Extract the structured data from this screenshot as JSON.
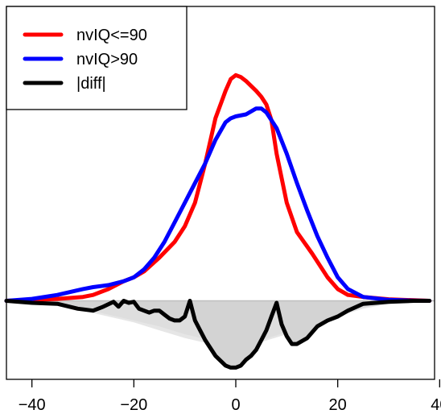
{
  "chart_data": {
    "type": "line",
    "title": "",
    "xlabel": "",
    "ylabel": "",
    "xlim": [
      -45,
      39
    ],
    "ylim": [
      -0.04,
      0.15
    ],
    "x_ticks": [
      -40,
      -20,
      0,
      20,
      40
    ],
    "x_tick_labels": [
      "−40",
      "−20",
      "0",
      "20",
      "40"
    ],
    "grid": false,
    "legend": {
      "position": "top-left",
      "entries": [
        {
          "label": "nvIQ<=90",
          "color": "#ff0000"
        },
        {
          "label": "nvIQ>90",
          "color": "#0000ff"
        },
        {
          "label": "|diff|",
          "color": "#000000"
        }
      ]
    },
    "series": [
      {
        "name": "nvIQ<=90",
        "color": "#ff0000",
        "x": [
          -45,
          -40,
          -35,
          -30,
          -28,
          -25,
          -22,
          -20,
          -18,
          -15,
          -12,
          -10,
          -8,
          -6,
          -4,
          -2,
          -1,
          0,
          1,
          2,
          4,
          5,
          6,
          7,
          8,
          10,
          12,
          15,
          18,
          20,
          22,
          25,
          30,
          35,
          38
        ],
        "y": [
          0,
          0.0005,
          0.001,
          0.002,
          0.003,
          0.006,
          0.01,
          0.012,
          0.015,
          0.022,
          0.03,
          0.038,
          0.05,
          0.07,
          0.093,
          0.107,
          0.113,
          0.115,
          0.114,
          0.112,
          0.107,
          0.104,
          0.1,
          0.092,
          0.075,
          0.05,
          0.035,
          0.024,
          0.012,
          0.006,
          0.003,
          0.002,
          0.0008,
          0.0003,
          0
        ]
      },
      {
        "name": "nvIQ>90",
        "color": "#0000ff",
        "x": [
          -45,
          -40,
          -35,
          -30,
          -28,
          -25,
          -22,
          -20,
          -18,
          -16,
          -14,
          -12,
          -10,
          -8,
          -6,
          -4,
          -2,
          -1,
          0,
          2,
          4,
          5,
          6,
          8,
          10,
          12,
          14,
          16,
          18,
          20,
          22,
          25,
          30,
          35,
          38
        ],
        "y": [
          0,
          0.001,
          0.003,
          0.006,
          0.007,
          0.008,
          0.01,
          0.012,
          0.016,
          0.022,
          0.03,
          0.04,
          0.05,
          0.06,
          0.07,
          0.082,
          0.091,
          0.093,
          0.094,
          0.095,
          0.098,
          0.098,
          0.096,
          0.088,
          0.075,
          0.06,
          0.046,
          0.033,
          0.022,
          0.012,
          0.006,
          0.002,
          0.0005,
          0.0001,
          0
        ]
      },
      {
        "name": "|diff|",
        "color": "#000000",
        "x": [
          -45,
          -40,
          -35,
          -31,
          -28,
          -26,
          -24,
          -23,
          -22,
          -21,
          -20,
          -19,
          -18,
          -17,
          -16,
          -15,
          -14,
          -13,
          -12,
          -11,
          -10,
          -9,
          -8,
          -6,
          -4,
          -2,
          -1,
          0,
          1,
          2,
          3,
          4,
          5,
          6,
          7,
          8,
          9,
          10,
          11,
          12,
          14,
          16,
          18,
          20,
          22,
          25,
          30,
          35,
          38
        ],
        "y": [
          0,
          -0.001,
          -0.0015,
          -0.004,
          -0.005,
          -0.003,
          -0.0005,
          -0.003,
          0,
          -0.001,
          -0.0005,
          -0.004,
          -0.005,
          -0.006,
          -0.005,
          -0.005,
          -0.007,
          -0.009,
          -0.01,
          -0.01,
          -0.008,
          0,
          -0.01,
          -0.02,
          -0.028,
          -0.033,
          -0.034,
          -0.034,
          -0.033,
          -0.03,
          -0.028,
          -0.025,
          -0.02,
          -0.015,
          -0.008,
          -0.001,
          -0.012,
          -0.018,
          -0.022,
          -0.022,
          -0.019,
          -0.013,
          -0.01,
          -0.008,
          -0.005,
          -0.0015,
          -0.0005,
          0,
          0
        ]
      },
      {
        "name": "",
        "color": "#d3d3d3",
        "x": [
          -45,
          -40,
          -35,
          -31,
          -28,
          -26,
          -24,
          -23,
          -22,
          -21,
          -20,
          -19,
          -18,
          -17,
          -16,
          -15,
          -14,
          -13,
          -12,
          -11,
          -10,
          -9,
          -8,
          -6,
          -4,
          -2,
          -1,
          0,
          1,
          2,
          3,
          4,
          5,
          6,
          7,
          8,
          9,
          10,
          11,
          12,
          14,
          16,
          18,
          20,
          22,
          25,
          30,
          35,
          38
        ],
        "y": [
          0,
          -0.001,
          -0.0015,
          -0.004,
          -0.005,
          -0.003,
          -0.0005,
          -0.003,
          0,
          -0.001,
          -0.0005,
          -0.004,
          -0.005,
          -0.006,
          -0.005,
          -0.005,
          -0.007,
          -0.009,
          -0.01,
          -0.01,
          -0.008,
          0,
          -0.01,
          -0.02,
          -0.028,
          -0.033,
          -0.034,
          -0.034,
          -0.033,
          -0.03,
          -0.028,
          -0.025,
          -0.02,
          -0.015,
          -0.008,
          -0.001,
          -0.012,
          -0.018,
          -0.022,
          -0.022,
          -0.019,
          -0.013,
          -0.01,
          -0.008,
          -0.005,
          -0.0015,
          -0.0005,
          0,
          0
        ]
      },
      {
        "name": "",
        "color": "#d3d3d3",
        "x": [
          -45,
          -40,
          -35,
          -30,
          -25,
          -20,
          -15,
          -10,
          -5,
          0,
          5,
          10,
          15,
          20,
          25,
          30,
          35,
          38
        ],
        "y": [
          0,
          -0.0005,
          -0.002,
          -0.005,
          -0.008,
          -0.011,
          -0.015,
          -0.019,
          -0.022,
          -0.023,
          -0.021,
          -0.017,
          -0.012,
          -0.008,
          -0.004,
          -0.0015,
          -0.0005,
          0
        ]
      },
      {
        "name": "",
        "color": "#d3d3d3",
        "x": [
          -45,
          -40,
          -35,
          -30,
          -25,
          -20,
          -15,
          -10,
          -5,
          0,
          5,
          10,
          15,
          20,
          25,
          30,
          35,
          38
        ],
        "y": [
          0,
          -0.0005,
          -0.0015,
          -0.004,
          -0.007,
          -0.01,
          -0.013,
          -0.017,
          -0.02,
          -0.021,
          -0.02,
          -0.016,
          -0.011,
          -0.007,
          -0.0035,
          -0.0012,
          -0.0004,
          0
        ]
      }
    ]
  }
}
